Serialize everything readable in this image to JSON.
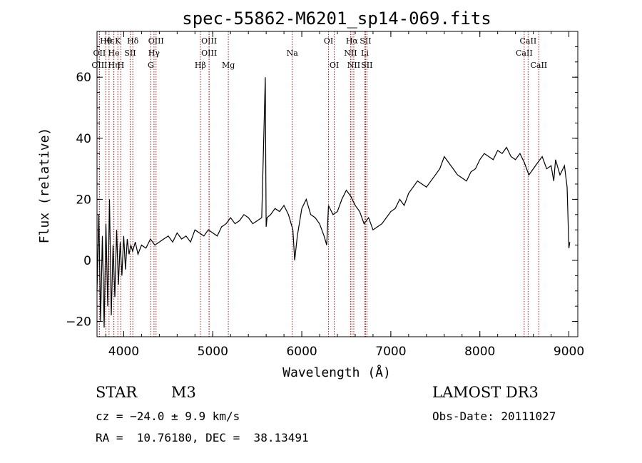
{
  "chart_data": {
    "type": "line",
    "title": "spec-55862-M6201_sp14-069.fits",
    "xlabel": "Wavelength (Å)",
    "ylabel": "Flux (relative)",
    "xlim": [
      3700,
      9100
    ],
    "ylim": [
      -25,
      75
    ],
    "xticks": [
      4000,
      5000,
      6000,
      7000,
      8000,
      9000
    ],
    "yticks": [
      -20,
      0,
      20,
      40,
      60
    ],
    "series": [
      {
        "name": "flux",
        "x": [
          3700,
          3720,
          3740,
          3760,
          3780,
          3800,
          3820,
          3840,
          3860,
          3880,
          3900,
          3920,
          3940,
          3960,
          3980,
          4000,
          4020,
          4040,
          4060,
          4080,
          4100,
          4130,
          4160,
          4200,
          4250,
          4300,
          4350,
          4400,
          4450,
          4500,
          4550,
          4600,
          4650,
          4700,
          4750,
          4800,
          4850,
          4900,
          4950,
          5000,
          5050,
          5100,
          5150,
          5200,
          5250,
          5300,
          5350,
          5400,
          5450,
          5500,
          5550,
          5590,
          5600,
          5610,
          5650,
          5700,
          5750,
          5800,
          5850,
          5880,
          5900,
          5920,
          5950,
          6000,
          6050,
          6100,
          6150,
          6200,
          6250,
          6280,
          6300,
          6350,
          6400,
          6450,
          6500,
          6550,
          6600,
          6650,
          6700,
          6750,
          6800,
          6850,
          6900,
          6950,
          7000,
          7050,
          7100,
          7150,
          7200,
          7250,
          7300,
          7350,
          7400,
          7450,
          7500,
          7550,
          7600,
          7650,
          7700,
          7750,
          7800,
          7850,
          7900,
          7950,
          8000,
          8050,
          8100,
          8150,
          8200,
          8250,
          8300,
          8350,
          8400,
          8450,
          8500,
          8550,
          8600,
          8650,
          8700,
          8750,
          8800,
          8830,
          8850,
          8900,
          8950,
          8980,
          9000,
          9010
        ],
        "y": [
          -10,
          15,
          -20,
          8,
          -22,
          12,
          -15,
          20,
          -18,
          5,
          -12,
          10,
          -8,
          6,
          -5,
          8,
          -3,
          7,
          2,
          5,
          3,
          6,
          2,
          5,
          4,
          7,
          5,
          6,
          7,
          8,
          6,
          9,
          7,
          8,
          6,
          10,
          9,
          8,
          10,
          9,
          8,
          11,
          12,
          14,
          12,
          13,
          15,
          14,
          12,
          13,
          14,
          60,
          11,
          14,
          15,
          17,
          16,
          18,
          15,
          12,
          10,
          0,
          8,
          17,
          20,
          15,
          14,
          12,
          8,
          5,
          18,
          15,
          16,
          20,
          23,
          21,
          18,
          16,
          12,
          14,
          10,
          11,
          12,
          14,
          16,
          17,
          20,
          18,
          22,
          24,
          26,
          25,
          24,
          26,
          28,
          30,
          34,
          32,
          30,
          28,
          27,
          26,
          29,
          30,
          33,
          35,
          34,
          33,
          36,
          35,
          37,
          34,
          33,
          35,
          32,
          28,
          30,
          32,
          34,
          30,
          31,
          26,
          33,
          28,
          31,
          24,
          4,
          6
        ]
      }
    ],
    "emission_lines": [
      {
        "label": "Hθ",
        "x": 3798,
        "row": 0
      },
      {
        "label": "Hε",
        "x": 3835,
        "row": 0
      },
      {
        "label": "K",
        "x": 3934,
        "row": 0
      },
      {
        "label": "Hδ",
        "x": 4102,
        "row": 0
      },
      {
        "label": "OIII",
        "x": 4363,
        "row": 0
      },
      {
        "label": "OIII",
        "x": 4959,
        "row": 0
      },
      {
        "label": "OI",
        "x": 6300,
        "row": 0
      },
      {
        "label": "Hα",
        "x": 6563,
        "row": 0
      },
      {
        "label": "SII",
        "x": 6716,
        "row": 0
      },
      {
        "label": "CaII",
        "x": 8542,
        "row": 0
      },
      {
        "label": "OII",
        "x": 3727,
        "row": 1
      },
      {
        "label": "He",
        "x": 3889,
        "row": 1
      },
      {
        "label": "SII",
        "x": 4072,
        "row": 1
      },
      {
        "label": "Hγ",
        "x": 4340,
        "row": 1
      },
      {
        "label": "OIII",
        "x": 4959,
        "row": 1
      },
      {
        "label": "NII",
        "x": 6548,
        "row": 1
      },
      {
        "label": "Li",
        "x": 6708,
        "row": 1
      },
      {
        "label": "CaII",
        "x": 8498,
        "row": 1
      },
      {
        "label": "OIII",
        "x": 3727,
        "row": 2
      },
      {
        "label": "Hη",
        "x": 3889,
        "row": 2
      },
      {
        "label": "H",
        "x": 3968,
        "row": 2
      },
      {
        "label": "G",
        "x": 4304,
        "row": 2
      },
      {
        "label": "Hβ",
        "x": 4861,
        "row": 2
      },
      {
        "label": "Mg",
        "x": 5175,
        "row": 2
      },
      {
        "label": "Na",
        "x": 5893,
        "row": 1
      },
      {
        "label": "OI",
        "x": 6364,
        "row": 2
      },
      {
        "label": "NII",
        "x": 6584,
        "row": 2
      },
      {
        "label": "SII",
        "x": 6731,
        "row": 2
      },
      {
        "label": "CaII",
        "x": 8662,
        "row": 2
      }
    ]
  },
  "info": {
    "object_type": "STAR",
    "subclass": "M3",
    "survey": "LAMOST DR3",
    "cz": "cz = −24.0 ± 9.9 km/s",
    "obs_date": "Obs-Date: 20111027",
    "coords": "RA =  10.76180, DEC =  38.13491"
  }
}
